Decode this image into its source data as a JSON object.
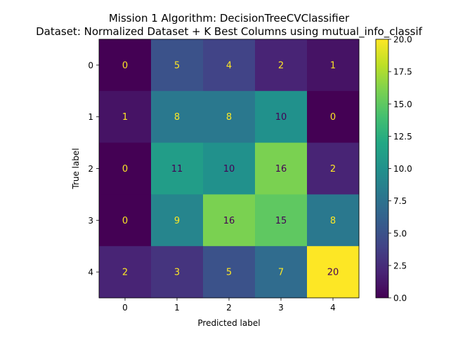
{
  "chart_data": {
    "type": "heatmap",
    "title": "Mission 1 Algorithm: DecisionTreeCVClassifier",
    "subtitle": "Dataset: Normalized Dataset + K Best Columns using mutual_info_classif",
    "xlabel": "Predicted label",
    "ylabel": "True label",
    "x_categories": [
      "0",
      "1",
      "2",
      "3",
      "4"
    ],
    "y_categories": [
      "0",
      "1",
      "2",
      "3",
      "4"
    ],
    "matrix": [
      [
        0,
        5,
        4,
        2,
        1
      ],
      [
        1,
        8,
        8,
        10,
        0
      ],
      [
        0,
        11,
        10,
        16,
        2
      ],
      [
        0,
        9,
        16,
        15,
        8
      ],
      [
        2,
        3,
        5,
        7,
        20
      ]
    ],
    "colorbar": {
      "colormap": "viridis",
      "range": [
        0,
        20
      ],
      "ticks": [
        0.0,
        2.5,
        5.0,
        7.5,
        10.0,
        12.5,
        15.0,
        17.5,
        20.0
      ],
      "tick_labels": [
        "0.0",
        "2.5",
        "5.0",
        "7.5",
        "10.0",
        "12.5",
        "15.0",
        "17.5",
        "20.0"
      ]
    },
    "text_colors": {
      "light": "#fde725",
      "dark": "#440154"
    },
    "grid": false,
    "legend": "none"
  }
}
